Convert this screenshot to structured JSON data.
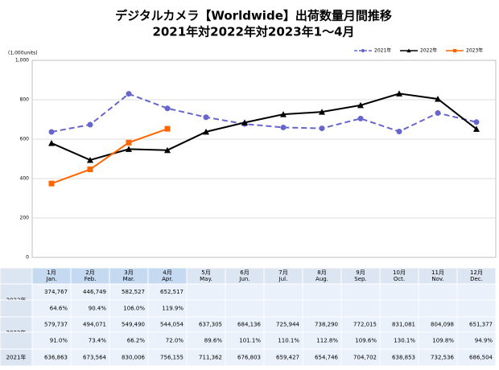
{
  "chart_data": {
    "type": "line",
    "title": "デジタルカメラ【Worldwide】出荷数量月間推移",
    "subtitle": "2021年対2022年対2023年1～4月",
    "y_unit": "(1,000units)",
    "categories": [
      "1月",
      "2月",
      "3月",
      "4月",
      "5月",
      "6月",
      "7月",
      "8月",
      "9月",
      "10月",
      "11月",
      "12月"
    ],
    "categories_en": [
      "Jan.",
      "Feb.",
      "Mar.",
      "Apr.",
      "May.",
      "Jun.",
      "Jul.",
      "Aug.",
      "Sep.",
      "Oct.",
      "Nov.",
      "Dec."
    ],
    "ylim": [
      0,
      1000
    ],
    "yticks": [
      0,
      200,
      400,
      600,
      800,
      {
        "value": 1000,
        "label": "1,000"
      }
    ],
    "grid": true,
    "legend": "top-right",
    "series": [
      {
        "name": "2021年",
        "color": "#6666cc",
        "dash": true,
        "marker": "circle",
        "values": [
          636.863,
          673.564,
          830.006,
          756.155,
          711.362,
          676.803,
          659.427,
          654.746,
          704.702,
          638.853,
          732.536,
          686.504
        ],
        "value_labels": [
          "636,863",
          "673,564",
          "830,006",
          "756,155",
          "711,362",
          "676,803",
          "659,427",
          "654,746",
          "704,702",
          "638,853",
          "732,536",
          "686,504"
        ]
      },
      {
        "name": "2022年",
        "color": "#000000",
        "dash": false,
        "marker": "triangle",
        "values": [
          579.737,
          494.071,
          549.49,
          544.054,
          637.305,
          684.136,
          725.944,
          738.29,
          772.015,
          831.081,
          804.098,
          651.377
        ],
        "value_labels": [
          "579,737",
          "494,071",
          "549,490",
          "544,054",
          "637,305",
          "684,136",
          "725,944",
          "738,290",
          "772,015",
          "831,081",
          "804,098",
          "651,377"
        ],
        "ratio_labels": [
          "91.0%",
          "73.4%",
          "66.2%",
          "72.0%",
          "89.6%",
          "101.1%",
          "110.1%",
          "112.8%",
          "109.6%",
          "130.1%",
          "109.8%",
          "94.9%"
        ]
      },
      {
        "name": "2023年",
        "color": "#ff6600",
        "dash": false,
        "marker": "square",
        "values": [
          374.767,
          446.749,
          582.527,
          652.517,
          null,
          null,
          null,
          null,
          null,
          null,
          null,
          null
        ],
        "value_labels": [
          "374,767",
          "446,749",
          "582,527",
          "652,517",
          null,
          null,
          null,
          null,
          null,
          null,
          null,
          null
        ],
        "ratio_labels": [
          "64.6%",
          "90.4%",
          "106.0%",
          "119.9%",
          null,
          null,
          null,
          null,
          null,
          null,
          null,
          null
        ]
      }
    ]
  }
}
